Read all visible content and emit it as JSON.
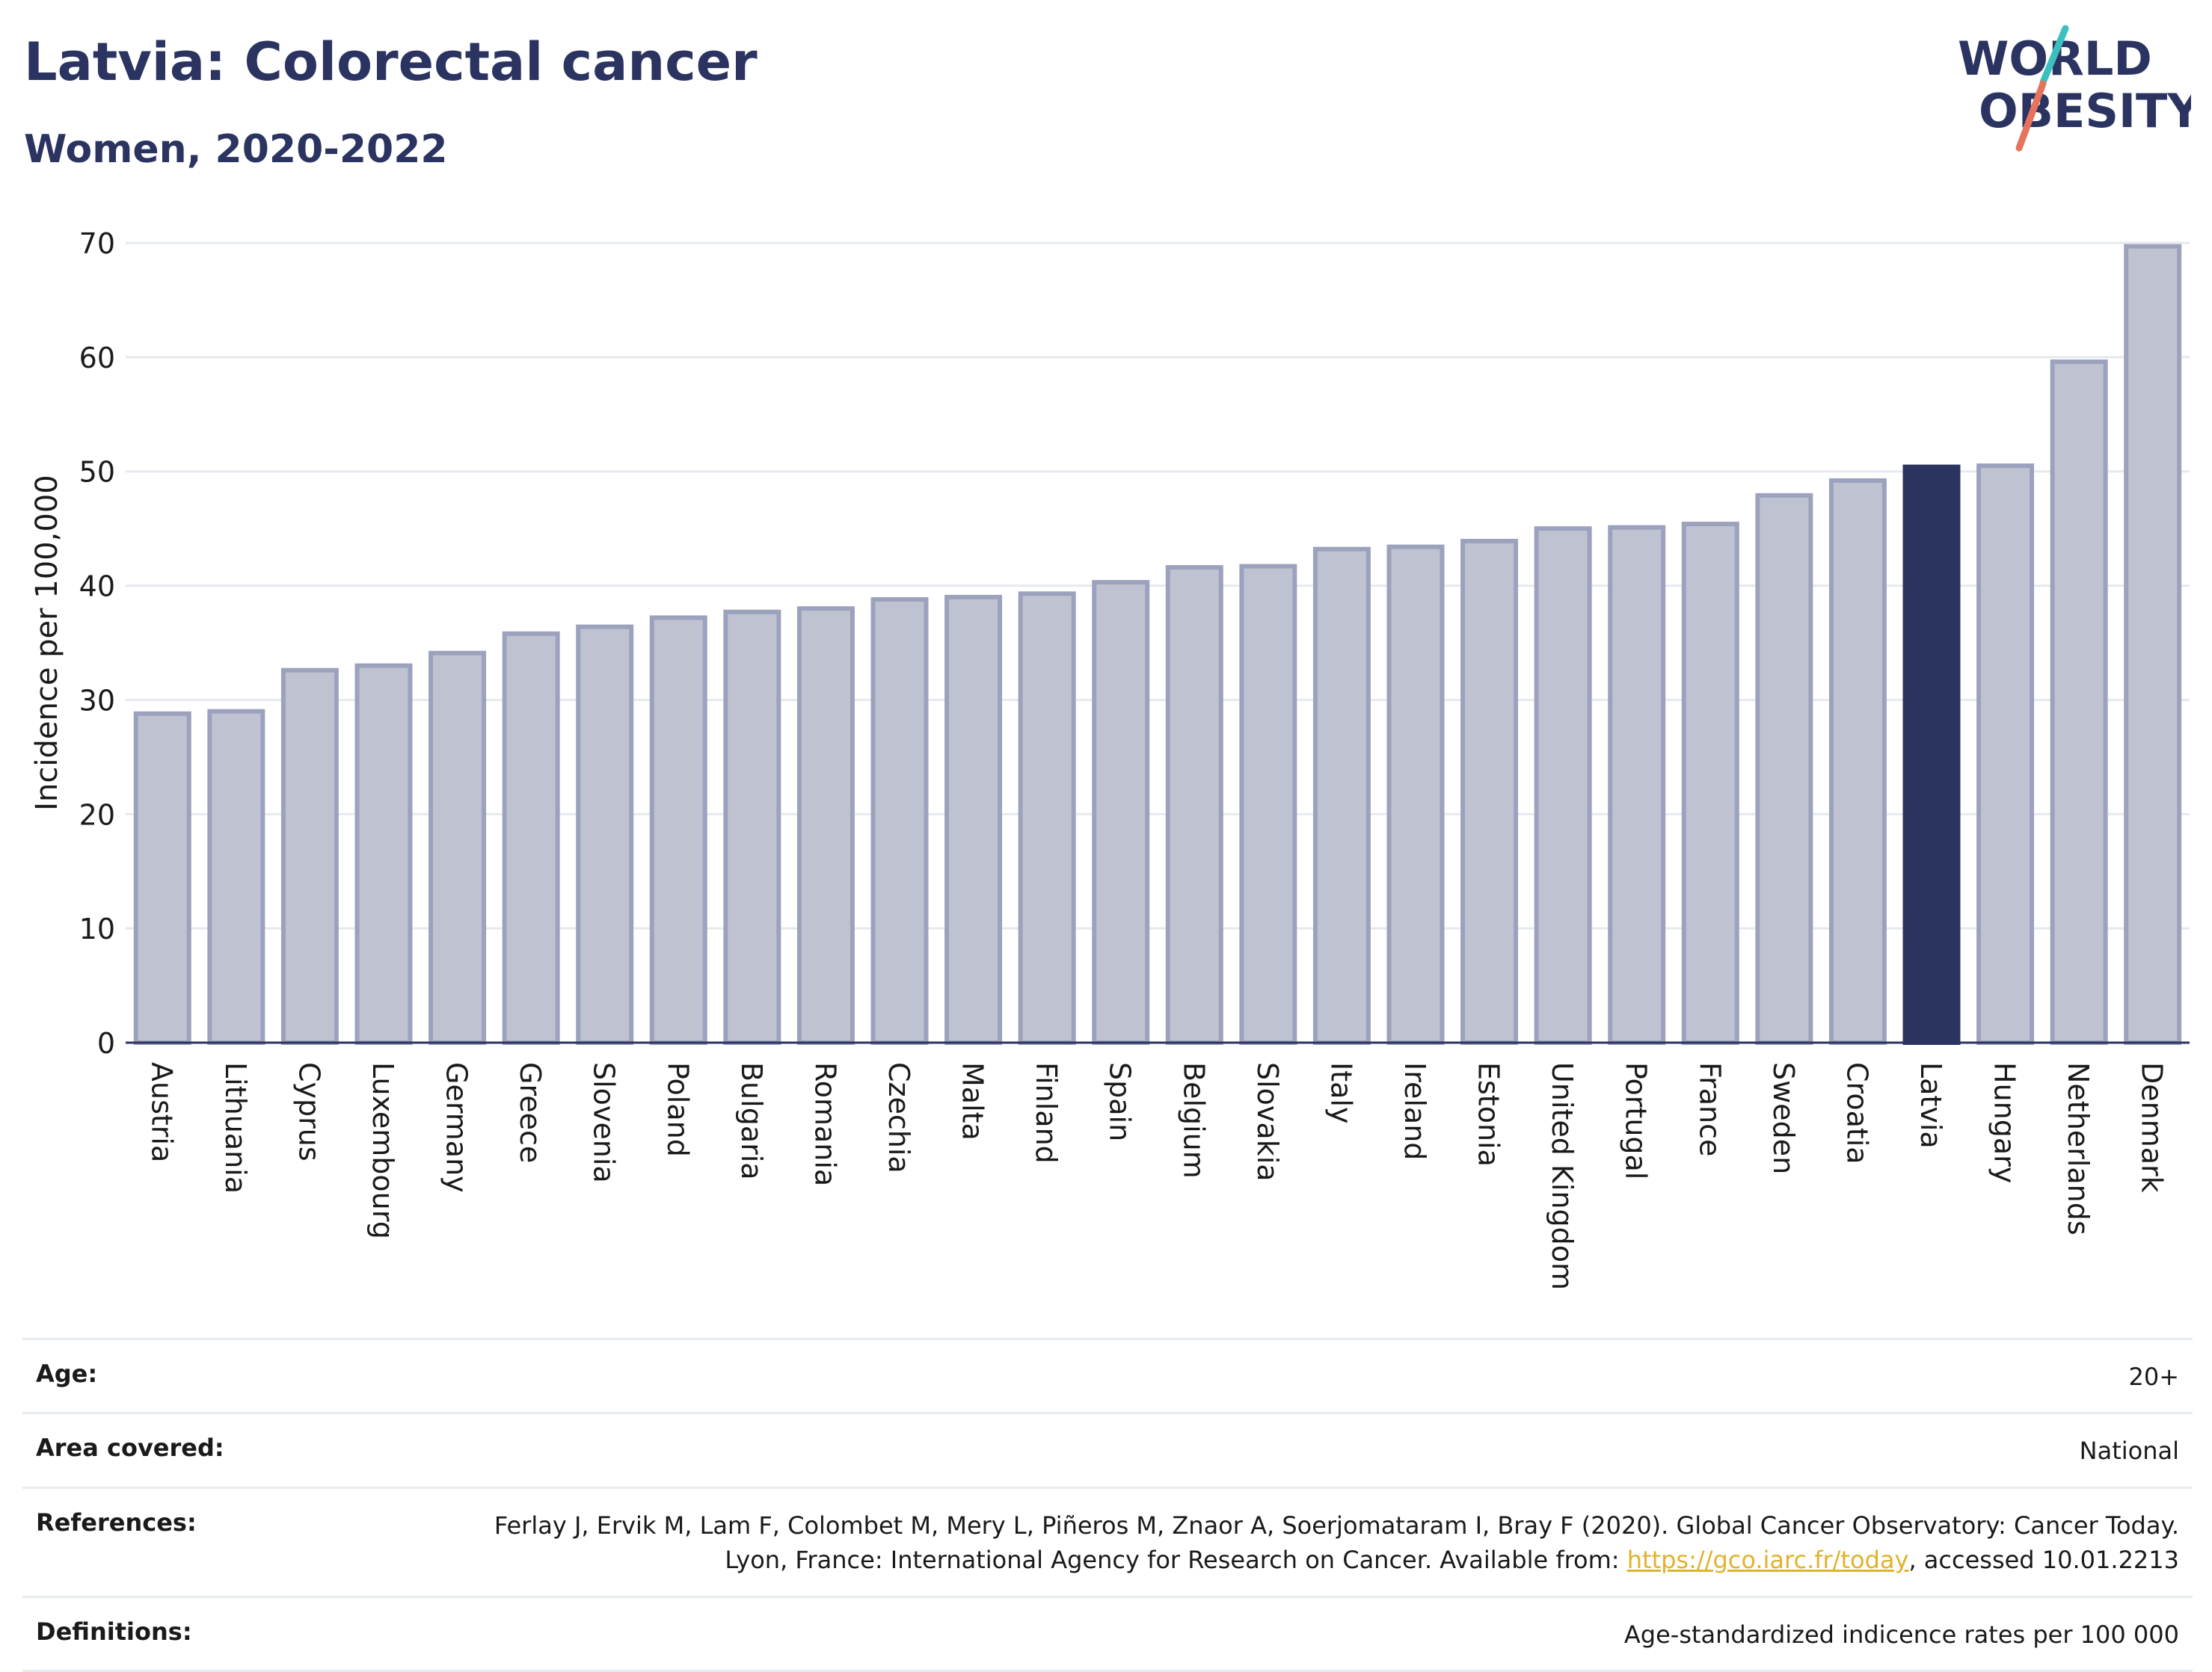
{
  "header": {
    "title": "Latvia: Colorectal cancer",
    "subtitle": "Women, 2020-2022"
  },
  "logo": {
    "line1": "WORLD",
    "line2": "OBESITY"
  },
  "colors": {
    "highlight": "#2b3461",
    "bar_fill": "#bfc3d1",
    "bar_stroke": "#9ca2bd",
    "grid": "#e6e9ee",
    "logo_teal": "#3bbfbf",
    "logo_coral": "#e6735c"
  },
  "chart_data": {
    "type": "bar",
    "title": "Latvia: Colorectal cancer",
    "subtitle": "Women, 2020-2022",
    "xlabel": "",
    "ylabel": "Incidence per 100,000",
    "ylim": [
      0,
      70
    ],
    "yticks": [
      0,
      10,
      20,
      30,
      40,
      50,
      60,
      70
    ],
    "grid": true,
    "highlight": "Latvia",
    "categories": [
      "Austria",
      "Lithuania",
      "Cyprus",
      "Luxembourg",
      "Germany",
      "Greece",
      "Slovenia",
      "Poland",
      "Bulgaria",
      "Romania",
      "Czechia",
      "Malta",
      "Finland",
      "Spain",
      "Belgium",
      "Slovakia",
      "Italy",
      "Ireland",
      "Estonia",
      "United Kingdom",
      "Portugal",
      "France",
      "Sweden",
      "Croatia",
      "Latvia",
      "Hungary",
      "Netherlands",
      "Denmark"
    ],
    "values": [
      28.8,
      29.0,
      32.6,
      33.0,
      34.1,
      35.8,
      36.4,
      37.2,
      37.7,
      38.0,
      38.8,
      39.0,
      39.3,
      40.3,
      41.6,
      41.7,
      43.2,
      43.4,
      43.9,
      45.0,
      45.1,
      45.4,
      47.9,
      49.2,
      50.4,
      50.5,
      59.6,
      69.7
    ]
  },
  "info": {
    "age_label": "Age:",
    "age_value": "20+",
    "area_label": "Area covered:",
    "area_value": "National",
    "references_label": "References:",
    "references_text1": "Ferlay J, Ervik M, Lam F, Colombet M, Mery L, Piñeros M, Znaor A, Soerjomataram I, Bray F (2020). Global Cancer Observatory: Cancer Today. Lyon, France: International Agency for Research on Cancer. Available from: ",
    "references_link": "https://gco.iarc.fr/today",
    "references_text2": ", accessed 10.01.2213",
    "definitions_label": "Definitions:",
    "definitions_value": "Age-standardized indicence rates per 100 000"
  }
}
